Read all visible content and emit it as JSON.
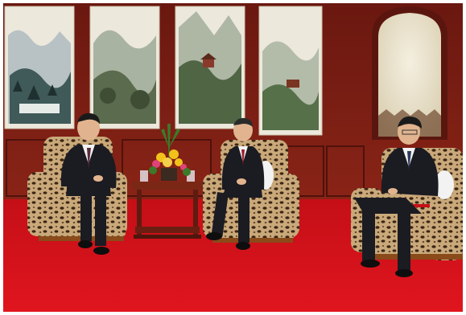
{
  "scene": {
    "colors": {
      "wall_wood": "#7a1e14",
      "wall_wood_dark": "#4e120b",
      "carpet": "#d4121a",
      "carpet_dark": "#b80d14",
      "painting_paper": "#ece8dc",
      "leopard_base": "#c9a97a",
      "leopard_spot": "#3a2414",
      "suit_dark": "#1b1b22",
      "shirt_white": "#f2f2f2",
      "skin": "#e1b48f",
      "hair": "#1a1a1a",
      "flowers_yellow": "#f2c21b",
      "flowers_pink": "#e0427a",
      "leaves_green": "#3c7a2a",
      "table_wood": "#7b2716"
    }
  }
}
